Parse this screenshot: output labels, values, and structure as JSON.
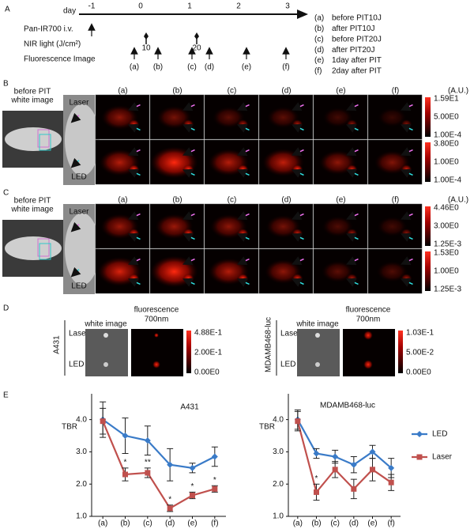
{
  "panel_a": {
    "label": "A",
    "day_label": "day",
    "days": [
      -1,
      0,
      1,
      2,
      3
    ],
    "rows": [
      "Pan-IR700 i.v.",
      "NIR light (J/cm²)",
      "Fluorescence Image"
    ],
    "nir_doses": [
      10,
      20
    ],
    "image_points": [
      "(a)",
      "(b)",
      "(c)",
      "(d)",
      "(e)",
      "(f)"
    ],
    "legend": [
      {
        "key": "(a)",
        "text": "before PIT10J"
      },
      {
        "key": "(b)",
        "text": "after PIT10J"
      },
      {
        "key": "(c)",
        "text": "before PIT20J"
      },
      {
        "key": "(d)",
        "text": "after PIT20J"
      },
      {
        "key": "(e)",
        "text": "1day after PIT"
      },
      {
        "key": "(f)",
        "text": "2day after PIT"
      }
    ]
  },
  "panel_b": {
    "label": "B",
    "white_image_label": [
      "before PIT",
      "white image"
    ],
    "rows": [
      "Laser",
      "LED"
    ],
    "columns": [
      "(a)",
      "(b)",
      "(c)",
      "(d)",
      "(e)",
      "(f)"
    ],
    "unit": "(A.U.)",
    "colorbars": [
      [
        "1.59E1",
        "5.00E0",
        "1.00E-4"
      ],
      [
        "3.80E0",
        "1.00E0",
        "1.00E-4"
      ]
    ]
  },
  "panel_c": {
    "label": "C",
    "white_image_label": [
      "before PIT",
      "white image"
    ],
    "rows": [
      "Laser",
      "LED"
    ],
    "columns": [
      "(a)",
      "(b)",
      "(c)",
      "(d)",
      "(e)",
      "(f)"
    ],
    "unit": "(A.U.)",
    "colorbars": [
      [
        "4.46E0",
        "3.00E0",
        "1.25E-3"
      ],
      [
        "1.53E0",
        "1.00E0",
        "1.25E-3"
      ]
    ]
  },
  "panel_d": {
    "label": "D",
    "groups": [
      {
        "name": "A431",
        "white_image": "white image",
        "fluorescence": [
          "fluorescence",
          "700nm"
        ],
        "rows": [
          "Laser",
          "LED"
        ],
        "colorbar": [
          "4.88E-1",
          "2.00E-1",
          "0.00E0"
        ]
      },
      {
        "name": "MDAMB468-luc",
        "white_image": "white image",
        "fluorescence": [
          "fluorescence",
          "700nm"
        ],
        "rows": [
          "Laser",
          "LED"
        ],
        "colorbar": [
          "1.03E-1",
          "5.00E-2",
          "0.00E0"
        ]
      }
    ]
  },
  "panel_e": {
    "label": "E"
  },
  "chart_data": [
    {
      "type": "line",
      "title": "A431",
      "y_label": "TBR",
      "categories": [
        "(a)",
        "(b)",
        "(c)",
        "(d)",
        "(e)",
        "(f)"
      ],
      "ylim": [
        1,
        4.8
      ],
      "yticks": [
        {
          "value": 1,
          "label": "1.0"
        },
        {
          "value": 2,
          "label": "2.0"
        },
        {
          "value": 3,
          "label": "3.0"
        },
        {
          "value": 4,
          "label": "4.0"
        }
      ],
      "series": [
        {
          "name": "LED",
          "color": "#3a7bc8",
          "marker": "diamond",
          "values": [
            4.0,
            3.5,
            3.35,
            2.6,
            2.5,
            2.85
          ],
          "errors": [
            0.55,
            0.55,
            0.45,
            0.5,
            0.15,
            0.3
          ]
        },
        {
          "name": "Laser",
          "color": "#c0504d",
          "marker": "square",
          "values": [
            3.95,
            2.3,
            2.35,
            1.25,
            1.65,
            1.85
          ],
          "errors": [
            0.4,
            0.2,
            0.15,
            0.1,
            0.1,
            0.1
          ]
        }
      ],
      "annotations": [
        {
          "index": 1,
          "text": "*"
        },
        {
          "index": 2,
          "text": "**"
        },
        {
          "index": 3,
          "text": "*"
        },
        {
          "index": 4,
          "text": "*"
        },
        {
          "index": 5,
          "text": "*"
        }
      ]
    },
    {
      "type": "line",
      "title": "MDAMB468-luc",
      "y_label": "TBR",
      "categories": [
        "(a)",
        "(b)",
        "(c)",
        "(d)",
        "(e)",
        "(f)"
      ],
      "ylim": [
        1,
        4.8
      ],
      "yticks": [
        {
          "value": 1,
          "label": "1.0"
        },
        {
          "value": 2,
          "label": "2.0"
        },
        {
          "value": 3,
          "label": "3.0"
        },
        {
          "value": 4,
          "label": "4.0"
        }
      ],
      "series": [
        {
          "name": "LED",
          "color": "#3a7bc8",
          "marker": "diamond",
          "values": [
            4.0,
            2.95,
            2.85,
            2.6,
            3.0,
            2.5
          ],
          "errors": [
            0.3,
            0.15,
            0.2,
            0.25,
            0.2,
            0.3
          ]
        },
        {
          "name": "Laser",
          "color": "#c0504d",
          "marker": "square",
          "values": [
            3.95,
            1.75,
            2.45,
            1.85,
            2.45,
            2.05
          ],
          "errors": [
            0.3,
            0.25,
            0.25,
            0.3,
            0.35,
            0.25
          ]
        }
      ],
      "annotations": [
        {
          "index": 1,
          "text": "*"
        }
      ],
      "legend": "right"
    }
  ]
}
